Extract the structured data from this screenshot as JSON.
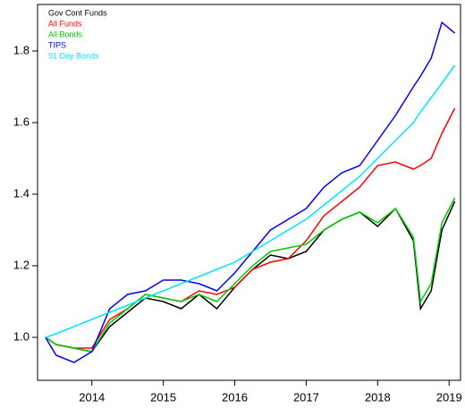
{
  "chart_data": {
    "type": "line",
    "x": [
      2013.35,
      2013.5,
      2013.75,
      2014,
      2014.25,
      2014.5,
      2014.75,
      2015,
      2015.25,
      2015.5,
      2015.75,
      2016,
      2016.25,
      2016.5,
      2016.75,
      2017,
      2017.25,
      2017.5,
      2017.75,
      2018,
      2018.25,
      2018.5,
      2018.6,
      2018.75,
      2018.9,
      2019.08
    ],
    "series": [
      {
        "name": "Gov Cont Funds",
        "color": "#000000",
        "values": [
          1.0,
          0.98,
          0.97,
          0.96,
          1.03,
          1.07,
          1.11,
          1.1,
          1.08,
          1.12,
          1.08,
          1.14,
          1.19,
          1.23,
          1.22,
          1.24,
          1.3,
          1.33,
          1.35,
          1.31,
          1.36,
          1.27,
          1.08,
          1.13,
          1.3,
          1.38
        ]
      },
      {
        "name": "All Funds",
        "color": "#ff0000",
        "values": [
          1.0,
          0.98,
          0.97,
          0.97,
          1.05,
          1.08,
          1.12,
          1.11,
          1.1,
          1.13,
          1.12,
          1.14,
          1.19,
          1.21,
          1.22,
          1.27,
          1.34,
          1.38,
          1.42,
          1.48,
          1.49,
          1.47,
          1.48,
          1.5,
          1.57,
          1.64
        ]
      },
      {
        "name": "All Bonds",
        "color": "#00cc00",
        "values": [
          1.0,
          0.98,
          0.97,
          0.96,
          1.04,
          1.08,
          1.12,
          1.11,
          1.1,
          1.12,
          1.1,
          1.15,
          1.2,
          1.24,
          1.25,
          1.26,
          1.3,
          1.33,
          1.35,
          1.32,
          1.36,
          1.28,
          1.1,
          1.15,
          1.32,
          1.39
        ]
      },
      {
        "name": "TIPS",
        "color": "#0000ff",
        "values": [
          1.0,
          0.95,
          0.93,
          0.96,
          1.08,
          1.12,
          1.13,
          1.16,
          1.16,
          1.15,
          1.13,
          1.18,
          1.24,
          1.3,
          1.33,
          1.36,
          1.42,
          1.46,
          1.48,
          1.55,
          1.62,
          1.7,
          1.73,
          1.78,
          1.88,
          1.85
        ]
      },
      {
        "name": "91 Day Bonds",
        "color": "#00e5ff",
        "values": [
          1.0,
          1.01,
          1.03,
          1.05,
          1.07,
          1.09,
          1.11,
          1.13,
          1.15,
          1.17,
          1.19,
          1.21,
          1.24,
          1.27,
          1.3,
          1.33,
          1.37,
          1.41,
          1.45,
          1.5,
          1.55,
          1.6,
          1.63,
          1.67,
          1.71,
          1.76
        ]
      }
    ],
    "xlim": [
      2013.24,
      2019.16
    ],
    "xticks": [
      2014,
      2015,
      2016,
      2017,
      2018,
      2019
    ],
    "ylim": [
      0.88,
      1.93
    ],
    "yticks": [
      {
        "value": 1,
        "label": "1.0"
      },
      1.2,
      1.4,
      1.6,
      1.8
    ],
    "legend": "top-left"
  }
}
